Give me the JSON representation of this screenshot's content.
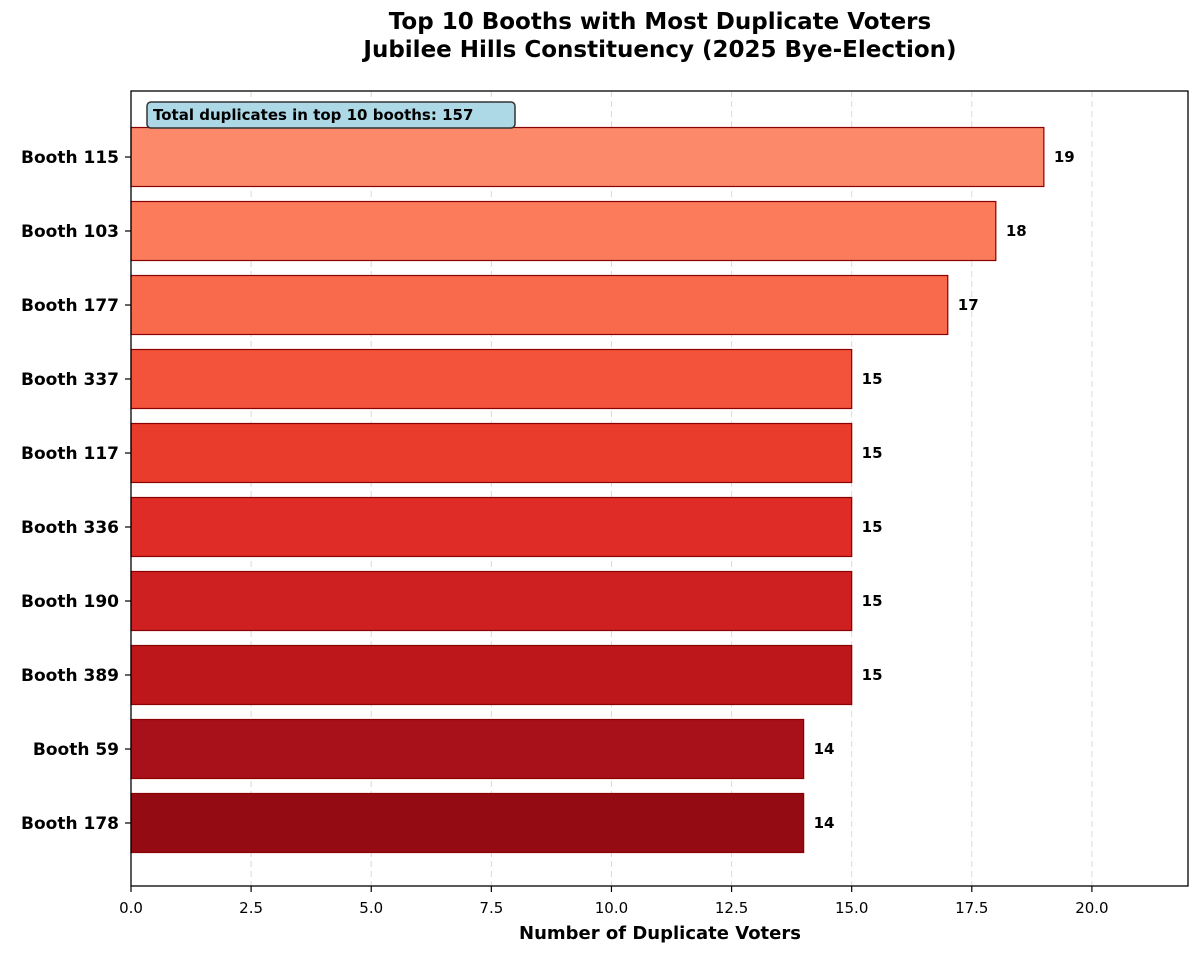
{
  "chart_data": {
    "type": "bar",
    "orientation": "horizontal",
    "title": "Top 10 Booths with Most Duplicate Voters",
    "subtitle": "Jubilee Hills Constituency (2025 Bye-Election)",
    "xlabel": "Number of Duplicate Voters",
    "ylabel": "",
    "xlim": [
      0,
      22
    ],
    "xticks": [
      0,
      2.5,
      5,
      7.5,
      10,
      12.5,
      15,
      17.5,
      20
    ],
    "xtick_labels": [
      "0.0",
      "2.5",
      "5.0",
      "7.5",
      "10.0",
      "12.5",
      "15.0",
      "17.5",
      "20.0"
    ],
    "grid": "x-axis dashed",
    "categories": [
      "Booth 115",
      "Booth 103",
      "Booth 177",
      "Booth 337",
      "Booth 117",
      "Booth 336",
      "Booth 190",
      "Booth 389",
      "Booth 59",
      "Booth 178"
    ],
    "values": [
      19,
      18,
      17,
      15,
      15,
      15,
      15,
      15,
      14,
      14
    ],
    "value_labels": [
      "19",
      "18",
      "17",
      "15",
      "15",
      "15",
      "15",
      "15",
      "14",
      "14"
    ],
    "bar_colors": [
      "#fc8a6a",
      "#fb7b5b",
      "#f96a4d",
      "#f3533a",
      "#ea3c2d",
      "#df2c27",
      "#ce1f21",
      "#bd161b",
      "#a8101a",
      "#940b14"
    ],
    "bar_edge_color": "#8b0000",
    "annotation": "Total duplicates in top 10 booths: 157",
    "annotation_bg": "#add8e6"
  }
}
